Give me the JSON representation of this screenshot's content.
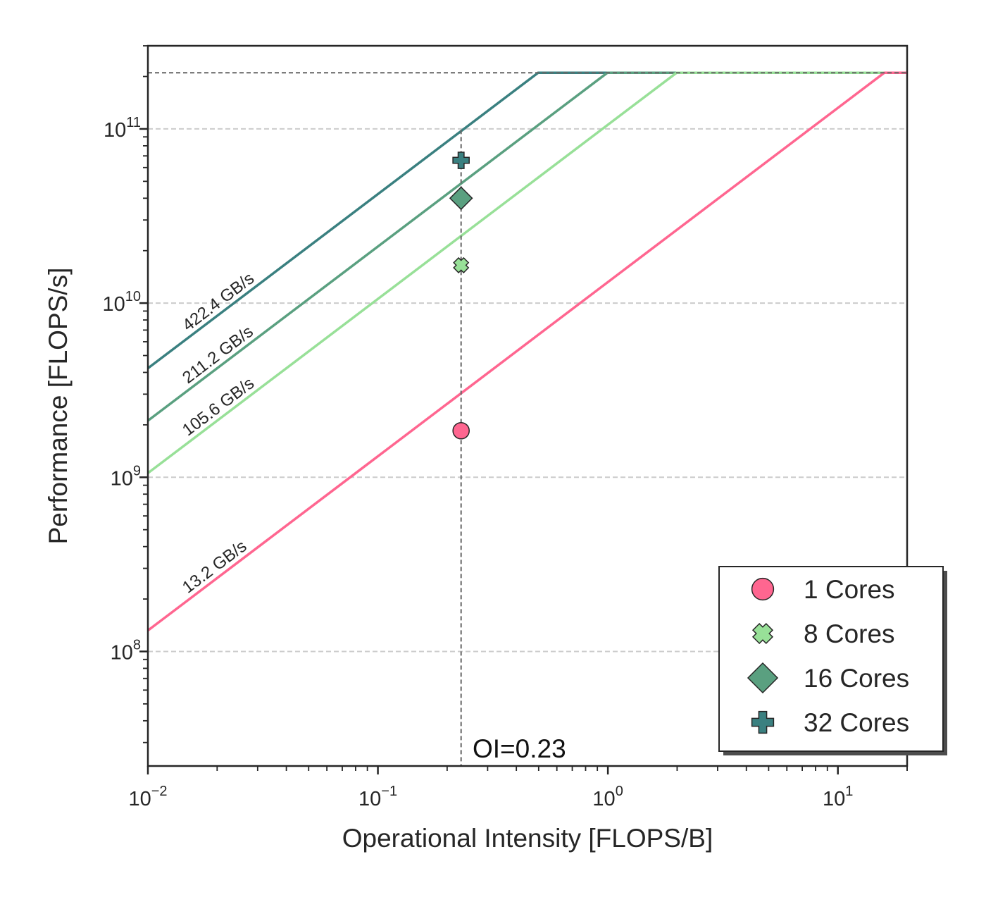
{
  "chart_data": {
    "type": "line",
    "scale": {
      "x": "log",
      "y": "log"
    },
    "xlim": [
      0.01,
      20
    ],
    "ylim": [
      22000000,
      300000000000
    ],
    "xlabel": "Operational Intensity [FLOPS/B]",
    "ylabel": "Performance [FLOPS/s]",
    "x_ticks": [
      {
        "value": 0.01,
        "base": "10",
        "exp": "−2"
      },
      {
        "value": 0.1,
        "base": "10",
        "exp": "−1"
      },
      {
        "value": 1,
        "base": "10",
        "exp": "0"
      },
      {
        "value": 10,
        "base": "10",
        "exp": "1"
      }
    ],
    "y_ticks": [
      {
        "value": 100000000,
        "base": "10",
        "exp": "8"
      },
      {
        "value": 1000000000,
        "base": "10",
        "exp": "9"
      },
      {
        "value": 10000000000,
        "base": "10",
        "exp": "10"
      },
      {
        "value": 100000000000,
        "base": "10",
        "exp": "11"
      }
    ],
    "grid": {
      "horizontal": true,
      "vertical": false,
      "style": "dashed"
    },
    "peak_performance": 210000000000,
    "roofs": [
      {
        "label": "422.4 GB/s",
        "bandwidth": 422400000000,
        "color": "#3a8080"
      },
      {
        "label": "211.2 GB/s",
        "bandwidth": 211200000000,
        "color": "#5aa080"
      },
      {
        "label": "105.6 GB/s",
        "bandwidth": 105600000000,
        "color": "#98e098"
      },
      {
        "label": "13.2 GB/s",
        "bandwidth": 13200000000,
        "color": "#ff6690"
      }
    ],
    "oi_marker": {
      "value": 0.23,
      "label": "OI=0.23"
    },
    "points": [
      {
        "name": "1 Cores",
        "x": 0.23,
        "y": 1850000000,
        "marker": "circle",
        "color": "#ff6690"
      },
      {
        "name": "8 Cores",
        "x": 0.23,
        "y": 16500000000,
        "marker": "x",
        "color": "#98e098"
      },
      {
        "name": "16 Cores",
        "x": 0.23,
        "y": 40000000000,
        "marker": "diamond",
        "color": "#5aa080"
      },
      {
        "name": "32 Cores",
        "x": 0.23,
        "y": 66000000000,
        "marker": "plus",
        "color": "#3a8080"
      }
    ],
    "legend": {
      "position": "lower-right"
    }
  }
}
